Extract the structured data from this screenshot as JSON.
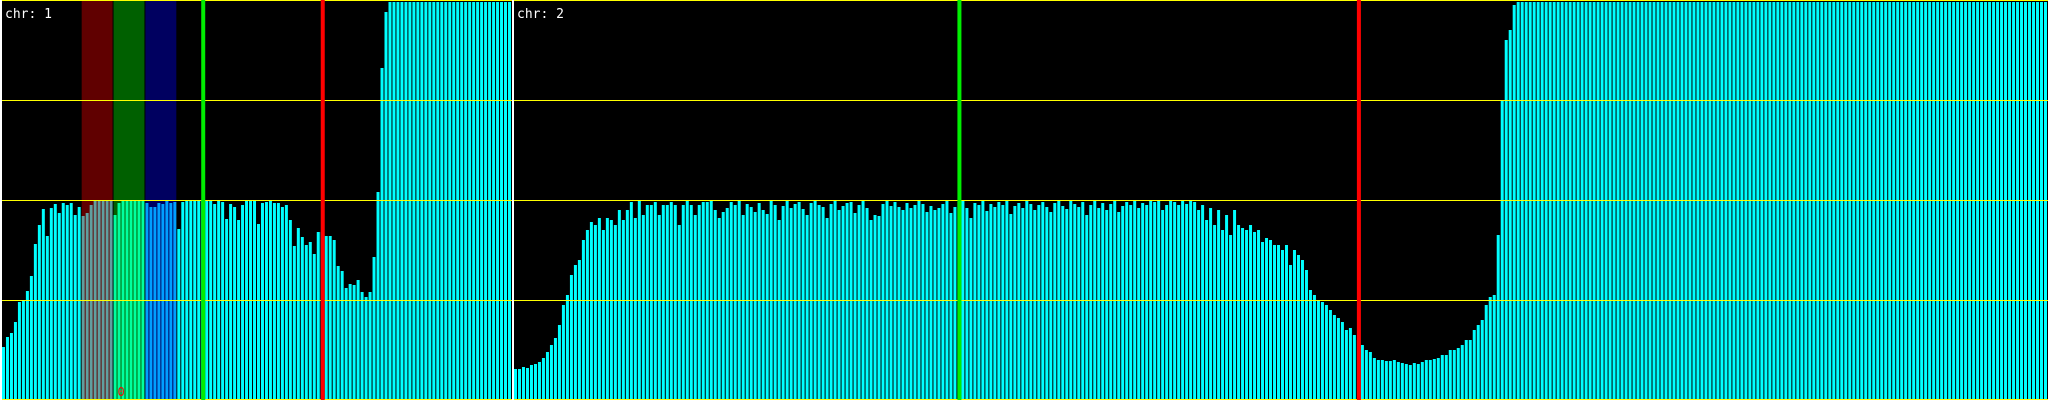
{
  "chart_data": {
    "type": "bar",
    "ylim": [
      0,
      4
    ],
    "grid": true,
    "gridlines": [
      0,
      1,
      2,
      3,
      4
    ],
    "colors": {
      "background": "#000000",
      "bars": "#00ffff",
      "grid": "#ffff00",
      "separator": "#ffffff",
      "green_marker": "#00ee00",
      "red_marker": "#ff0000",
      "band_red": "#ff0000",
      "band_green": "#00ff00",
      "band_blue": "#0000ff"
    },
    "panels": [
      {
        "label": "chr: 1",
        "values": [
          0.53,
          0.63,
          0.67,
          0.78,
          0.98,
          1.0,
          1.09,
          1.24,
          1.56,
          1.75,
          1.91,
          1.64,
          1.92,
          1.96,
          1.87,
          1.97,
          1.95,
          1.97,
          1.85,
          1.93,
          1.84,
          1.87,
          1.95,
          2.0,
          2.0,
          2.0,
          2.0,
          2.0,
          1.85,
          1.97,
          2.0,
          2.0,
          2.0,
          2.0,
          2.0,
          2.0,
          1.97,
          1.93,
          1.93,
          1.97,
          1.96,
          2.0,
          1.97,
          1.98,
          1.71,
          1.98,
          1.99,
          1.99,
          1.99,
          1.99,
          1.99,
          1.99,
          1.99,
          1.96,
          1.99,
          1.98,
          1.81,
          1.96,
          1.93,
          1.8,
          1.95,
          1.99,
          1.99,
          1.99,
          1.76,
          1.97,
          1.98,
          1.99,
          1.97,
          1.97,
          1.93,
          1.95,
          1.8,
          1.54,
          1.72,
          1.63,
          1.55,
          1.58,
          1.46,
          1.68,
          1.68,
          1.64,
          1.64,
          1.6,
          1.34,
          1.29,
          1.12,
          1.16,
          1.15,
          1.2,
          1.08,
          1.03,
          1.08,
          1.43,
          2.08,
          3.32,
          3.88,
          4.2,
          4.2,
          4.2,
          4.2,
          4.2,
          4.2,
          4.2,
          4.2,
          4.2,
          4.2,
          4.2,
          4.2,
          4.2,
          4.2,
          4.2,
          4.2,
          4.2,
          4.2,
          4.2,
          4.2,
          4.2,
          4.2,
          4.2,
          4.2,
          4.2,
          4.2,
          4.2,
          4.2,
          4.2,
          4.2,
          4.2
        ],
        "markers": [
          {
            "type": "green",
            "position": 50
          },
          {
            "type": "red",
            "position": 80
          }
        ],
        "bands": [
          {
            "color": "red",
            "from": 20,
            "to": 27
          },
          {
            "color": "green",
            "from": 28,
            "to": 35
          },
          {
            "color": "blue",
            "from": 36,
            "to": 43
          }
        ],
        "annotations": [
          {
            "text": "0",
            "position": 29
          }
        ]
      },
      {
        "label": "chr: 2",
        "values": [
          0.31,
          0.31,
          0.33,
          0.32,
          0.35,
          0.36,
          0.38,
          0.42,
          0.48,
          0.55,
          0.62,
          0.75,
          0.95,
          1.05,
          1.25,
          1.35,
          1.4,
          1.6,
          1.7,
          1.78,
          1.75,
          1.82,
          1.7,
          1.82,
          1.8,
          1.75,
          1.9,
          1.8,
          1.9,
          1.98,
          1.82,
          2.0,
          1.85,
          1.95,
          1.95,
          1.98,
          1.85,
          1.95,
          1.95,
          1.98,
          1.95,
          1.75,
          1.95,
          2.0,
          1.95,
          1.85,
          1.95,
          1.98,
          1.98,
          2.0,
          1.9,
          1.82,
          1.88,
          1.92,
          1.98,
          1.95,
          2.0,
          1.85,
          1.96,
          1.93,
          1.88,
          1.97,
          1.9,
          1.86,
          1.99,
          1.95,
          1.8,
          1.94,
          1.99,
          1.92,
          1.96,
          1.98,
          1.91,
          1.85,
          1.97,
          2.0,
          1.95,
          1.93,
          1.82,
          1.96,
          1.99,
          1.9,
          1.94,
          1.97,
          1.98,
          1.87,
          1.95,
          2.0,
          1.92,
          1.8,
          1.85,
          1.84,
          1.96,
          1.99,
          1.94,
          1.98,
          1.93,
          1.9,
          1.97,
          1.92,
          1.95,
          1.99,
          1.96,
          1.88,
          1.94,
          1.9,
          1.92,
          1.96,
          1.99,
          1.87,
          1.93,
          1.98,
          2.0,
          1.92,
          1.82,
          1.97,
          1.95,
          1.99,
          1.89,
          1.96,
          1.93,
          1.98,
          1.95,
          1.99,
          1.86,
          1.94,
          1.97,
          1.92,
          1.99,
          1.96,
          1.9,
          1.95,
          1.98,
          1.93,
          1.88,
          1.97,
          2.0,
          1.94,
          1.91,
          1.99,
          1.96,
          1.93,
          1.98,
          1.85,
          1.95,
          1.99,
          1.92,
          1.97,
          1.9,
          1.96,
          1.99,
          1.88,
          1.94,
          1.98,
          1.95,
          2.0,
          1.92,
          1.97,
          1.95,
          2.0,
          1.98,
          2.0,
          1.9,
          1.95,
          2.0,
          1.98,
          1.95,
          2.0,
          1.96,
          2.0,
          1.98,
          1.9,
          1.95,
          1.8,
          1.92,
          1.75,
          1.9,
          1.7,
          1.85,
          1.65,
          1.9,
          1.75,
          1.72,
          1.7,
          1.75,
          1.68,
          1.7,
          1.58,
          1.62,
          1.6,
          1.55,
          1.55,
          1.5,
          1.55,
          1.35,
          1.5,
          1.45,
          1.4,
          1.3,
          1.1,
          1.05,
          1.0,
          0.98,
          0.95,
          0.9,
          0.85,
          0.82,
          0.78,
          0.7,
          0.72,
          0.65,
          0.6,
          0.55,
          0.5,
          0.48,
          0.42,
          0.4,
          0.4,
          0.39,
          0.39,
          0.4,
          0.38,
          0.37,
          0.36,
          0.35,
          0.37,
          0.36,
          0.38,
          0.4,
          0.4,
          0.41,
          0.42,
          0.45,
          0.45,
          0.5,
          0.5,
          0.52,
          0.55,
          0.6,
          0.6,
          0.7,
          0.75,
          0.8,
          0.95,
          1.03,
          1.05,
          1.65,
          3.0,
          3.6,
          3.7,
          3.95,
          3.98,
          4.2,
          4.2,
          4.2,
          4.2,
          4.2,
          4.2,
          4.2,
          4.2,
          4.2,
          4.2,
          4.2,
          4.2,
          4.2,
          4.2,
          4.2,
          4.2,
          4.2,
          4.2,
          4.2,
          4.2,
          4.2,
          4.2,
          4.2,
          4.2,
          4.2,
          4.2,
          4.2,
          4.2,
          4.2,
          4.2,
          4.2,
          4.2,
          4.2,
          4.2,
          4.2,
          4.2,
          4.2,
          4.2,
          4.2,
          4.2,
          4.2,
          4.2,
          4.2,
          4.2,
          4.2,
          4.2,
          4.2,
          4.2,
          4.2,
          4.2,
          4.2,
          4.2,
          4.2,
          4.2,
          4.2,
          4.2,
          4.2,
          4.2,
          4.2,
          4.2,
          4.2,
          4.2,
          4.2,
          4.2,
          4.2,
          4.2,
          4.2,
          4.2,
          4.2,
          4.2,
          4.2,
          4.2,
          4.2,
          4.2,
          4.2,
          4.2,
          4.2,
          4.2,
          4.2,
          4.2,
          4.2,
          4.2,
          4.2,
          4.2,
          4.2,
          4.2,
          4.2,
          4.2,
          4.2,
          4.2,
          4.2,
          4.2,
          4.2,
          4.2,
          4.2,
          4.2,
          4.2,
          4.2,
          4.2,
          4.2,
          4.2,
          4.2,
          4.2,
          4.2,
          4.2,
          4.2,
          4.2,
          4.2,
          4.2,
          4.2,
          4.2,
          4.2,
          4.2,
          4.2,
          4.2,
          4.2,
          4.2,
          4.2,
          4.2,
          4.2,
          4.2,
          4.2,
          4.2,
          4.2,
          4.2,
          4.2,
          4.2,
          4.2,
          4.2,
          4.2,
          4.2,
          4.2
        ],
        "markers": [
          {
            "type": "green",
            "position": 111
          },
          {
            "type": "red",
            "position": 211
          }
        ],
        "bands": [],
        "annotations": []
      }
    ]
  }
}
